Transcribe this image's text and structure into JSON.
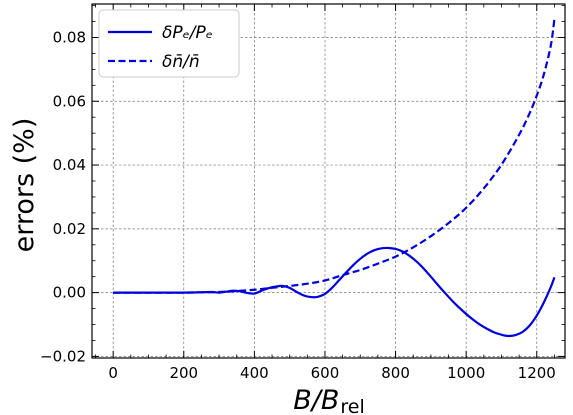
{
  "chart_data": {
    "type": "line",
    "title": "",
    "xlabel": "B/B",
    "xlabel_sub": "rel",
    "ylabel": "errors (%)",
    "xlim": [
      -60,
      1280
    ],
    "ylim": [
      -0.0205,
      0.0905
    ],
    "xticks": [
      0,
      200,
      400,
      600,
      800,
      1000,
      1200
    ],
    "xtick_labels": [
      "0",
      "200",
      "400",
      "600",
      "800",
      "1000",
      "1200"
    ],
    "yticks": [
      -0.02,
      0.0,
      0.02,
      0.04,
      0.06,
      0.08
    ],
    "ytick_labels": [
      "−0.02",
      "0.00",
      "0.02",
      "0.04",
      "0.06",
      "0.08"
    ],
    "grid": true,
    "legend_position": "top-left",
    "series": [
      {
        "name": "δPₑ/Pₑ",
        "line_style": "solid",
        "color": "#0000dd",
        "x": [
          0,
          100,
          200,
          250,
          280,
          300,
          320,
          340,
          360,
          380,
          400,
          420,
          440,
          460,
          480,
          500,
          520,
          540,
          560,
          580,
          600,
          620,
          640,
          660,
          680,
          700,
          720,
          740,
          760,
          780,
          800,
          820,
          840,
          860,
          880,
          900,
          920,
          940,
          960,
          980,
          1000,
          1020,
          1040,
          1060,
          1080,
          1100,
          1120,
          1140,
          1160,
          1180,
          1200,
          1220,
          1240,
          1250
        ],
        "y": [
          0,
          0,
          0,
          0.0001,
          0.0002,
          0,
          0.0003,
          0.0006,
          0.0004,
          -0.0001,
          -0.0003,
          0.0006,
          0.0014,
          0.0019,
          0.0021,
          0.0015,
          0.0002,
          -0.0009,
          -0.0014,
          -0.0013,
          -0.0004,
          0.0015,
          0.0039,
          0.0063,
          0.0086,
          0.0106,
          0.0122,
          0.0133,
          0.0139,
          0.014,
          0.0137,
          0.0129,
          0.0115,
          0.0097,
          0.0075,
          0.005,
          0.0024,
          -0.0001,
          -0.0025,
          -0.0047,
          -0.0067,
          -0.0085,
          -0.0101,
          -0.0114,
          -0.0125,
          -0.0132,
          -0.0136,
          -0.0133,
          -0.0123,
          -0.0103,
          -0.0072,
          -0.0031,
          0.0018,
          0.0048
        ]
      },
      {
        "name": "δn̄/n̄",
        "line_style": "dashed",
        "color": "#0000dd",
        "x": [
          0,
          100,
          200,
          250,
          300,
          350,
          400,
          450,
          500,
          550,
          600,
          650,
          700,
          750,
          800,
          850,
          900,
          950,
          1000,
          1050,
          1100,
          1150,
          1180,
          1200,
          1220,
          1240,
          1250
        ],
        "y": [
          0,
          0,
          0,
          0.0001,
          0.0002,
          0.0005,
          0.0009,
          0.0015,
          0.0021,
          0.0028,
          0.0038,
          0.0055,
          0.0071,
          0.0091,
          0.0113,
          0.0142,
          0.0177,
          0.0218,
          0.0266,
          0.0327,
          0.0401,
          0.0495,
          0.0563,
          0.0618,
          0.0684,
          0.0776,
          0.0858
        ]
      }
    ]
  }
}
